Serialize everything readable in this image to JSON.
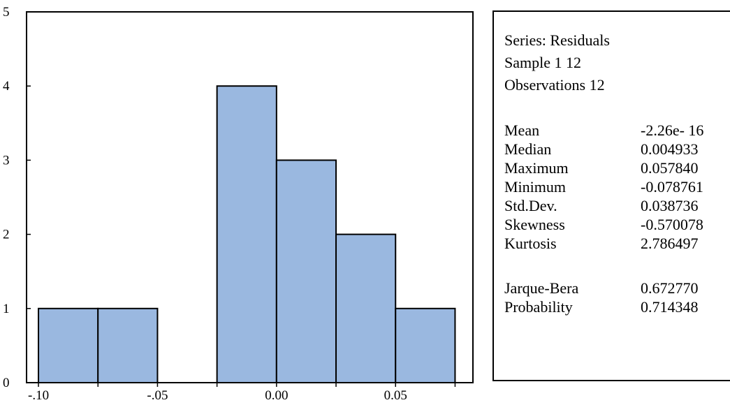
{
  "chart_data": {
    "type": "bar",
    "bins": [
      {
        "start": -0.1,
        "end": -0.075,
        "count": 1
      },
      {
        "start": -0.075,
        "end": -0.05,
        "count": 1
      },
      {
        "start": -0.05,
        "end": -0.025,
        "count": 0
      },
      {
        "start": -0.025,
        "end": 0.0,
        "count": 4
      },
      {
        "start": 0.0,
        "end": 0.025,
        "count": 3
      },
      {
        "start": 0.025,
        "end": 0.05,
        "count": 2
      },
      {
        "start": 0.05,
        "end": 0.075,
        "count": 1
      }
    ],
    "xlim": [
      -0.105,
      0.0825
    ],
    "ylim": [
      0,
      5
    ],
    "x_ticks": [
      -0.1,
      -0.075,
      -0.05,
      -0.025,
      0.0,
      0.025,
      0.05,
      0.075
    ],
    "x_tick_labels": [
      {
        "value": -0.1,
        "label": "-.10"
      },
      {
        "value": -0.05,
        "label": "-.05"
      },
      {
        "value": 0.0,
        "label": "0.00"
      },
      {
        "value": 0.05,
        "label": "0.05"
      }
    ],
    "y_ticks": [
      0,
      1,
      2,
      3,
      4,
      5
    ],
    "bar_color": "#9ab8e0",
    "grid": false
  },
  "stats": {
    "header": [
      "Series: Residuals",
      "Sample 1 12",
      "Observations 12"
    ],
    "rows": [
      {
        "label": "Mean",
        "value": "-2.26e- 16"
      },
      {
        "label": "Median",
        "value": "0.004933"
      },
      {
        "label": "Maximum",
        "value": "0.057840"
      },
      {
        "label": "Minimum",
        "value": "-0.078761"
      },
      {
        "label": "Std.Dev.",
        "value": "0.038736"
      },
      {
        "label": "Skewness",
        "value": "-0.570078"
      },
      {
        "label": "Kurtosis",
        "value": "2.786497"
      }
    ],
    "test_rows": [
      {
        "label": "Jarque-Bera",
        "value": "0.672770"
      },
      {
        "label": "Probability",
        "value": "0.714348"
      }
    ]
  }
}
